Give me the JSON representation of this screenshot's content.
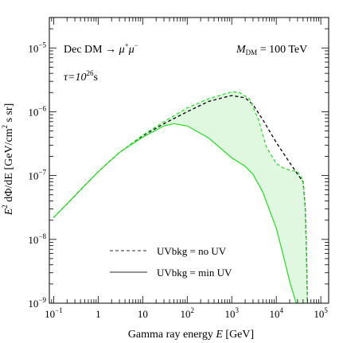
{
  "chart_data": {
    "type": "line",
    "xlabel_prefix": "Gamma ray energy ",
    "xlabel_var": "E",
    "xlabel_unit": " [GeV]",
    "ylabel_prefix": "E",
    "ylabel_exp": "2",
    "ylabel_mid": " dΦ/dE [GeV/cm",
    "ylabel_exp2": "2",
    "ylabel_suffix": " s sr]",
    "x_scale": "log",
    "y_scale": "log",
    "xlim": [
      0.08,
      150000
    ],
    "ylim": [
      1e-09,
      3e-05
    ],
    "x_ticks": [
      {
        "value": 0.1,
        "label_base": "10",
        "label_exp": "−1"
      },
      {
        "value": 1,
        "label_base": "1",
        "label_exp": ""
      },
      {
        "value": 10,
        "label_base": "10",
        "label_exp": ""
      },
      {
        "value": 100,
        "label_base": "10",
        "label_exp": "2"
      },
      {
        "value": 1000,
        "label_base": "10",
        "label_exp": "3"
      },
      {
        "value": 10000,
        "label_base": "10",
        "label_exp": "4"
      },
      {
        "value": 100000,
        "label_base": "10",
        "label_exp": "5"
      }
    ],
    "y_ticks": [
      {
        "value": 1e-09,
        "label_base": "10",
        "label_exp": "−9"
      },
      {
        "value": 1e-08,
        "label_base": "10",
        "label_exp": "−8"
      },
      {
        "value": 1e-07,
        "label_base": "10",
        "label_exp": "−7"
      },
      {
        "value": 1e-06,
        "label_base": "10",
        "label_exp": "−6"
      },
      {
        "value": 1e-05,
        "label_base": "10",
        "label_exp": "−5"
      }
    ],
    "annotations": {
      "channel_prefix": "Dec DM → ",
      "channel_mu": "μ",
      "channel_plus": "+",
      "channel_mu2": "μ",
      "channel_minus": "−",
      "tau_prefix": "τ=10",
      "tau_exp": "26",
      "tau_suffix": "s",
      "mass_var": "M",
      "mass_sub": "DM",
      "mass_value": " = 100 TeV"
    },
    "legend": {
      "placement": "bottom-center",
      "entries": [
        {
          "label": "UVbkg = no UV",
          "style": "dashed"
        },
        {
          "label": "UVbkg = min UV",
          "style": "solid"
        }
      ]
    },
    "colors": {
      "green": "#33dd33",
      "black": "#000000",
      "band_fill": "#e0f8e0"
    },
    "series": [
      {
        "color": "black",
        "style": "dashed",
        "x": [
          0.1,
          0.2,
          0.5,
          1,
          3,
          10,
          30,
          100,
          300,
          1000,
          2000,
          3000,
          5000,
          10000,
          20000,
          30000,
          40000,
          45000,
          48000,
          50000
        ],
        "y": [
          2.2e-08,
          3.6e-08,
          7e-08,
          1.15e-07,
          2.3e-07,
          4.2e-07,
          6.5e-07,
          1e-06,
          1.45e-06,
          1.8e-06,
          1.65e-06,
          1.3e-06,
          7.5e-07,
          3.3e-07,
          1.6e-07,
          1.05e-07,
          8e-08,
          3e-08,
          5e-09,
          1e-09
        ]
      },
      {
        "color": "green",
        "style": "dashed",
        "x": [
          0.1,
          0.2,
          0.5,
          1,
          3,
          10,
          30,
          100,
          300,
          1000,
          1500,
          2500,
          4000,
          6000,
          10000,
          15000,
          20000,
          30000,
          40000,
          45000,
          48000,
          50000
        ],
        "y": [
          2.2e-08,
          3.6e-08,
          7e-08,
          1.15e-07,
          2.3e-07,
          4.3e-07,
          7e-07,
          1.15e-06,
          1.6e-06,
          2.05e-06,
          2e-06,
          1.6e-06,
          7.5e-07,
          2.8e-07,
          1.55e-07,
          1.3e-07,
          1.22e-07,
          1.15e-07,
          8.5e-08,
          3e-08,
          5e-09,
          1e-09
        ]
      },
      {
        "color": "green",
        "style": "solid",
        "x": [
          0.1,
          0.2,
          0.5,
          1,
          3,
          10,
          30,
          50,
          100,
          300,
          1000,
          2000,
          3000,
          5000,
          10000,
          15000,
          20000,
          25000,
          28000,
          32000
        ],
        "y": [
          2.2e-08,
          3.6e-08,
          7e-08,
          1.15e-07,
          2.3e-07,
          4e-07,
          6e-07,
          6.5e-07,
          6e-07,
          3.9e-07,
          1.9e-07,
          1.4e-07,
          1.05e-07,
          5.5e-08,
          1.5e-08,
          5e-09,
          2.2e-09,
          1.3e-09,
          1e-09,
          7e-10
        ]
      }
    ]
  }
}
